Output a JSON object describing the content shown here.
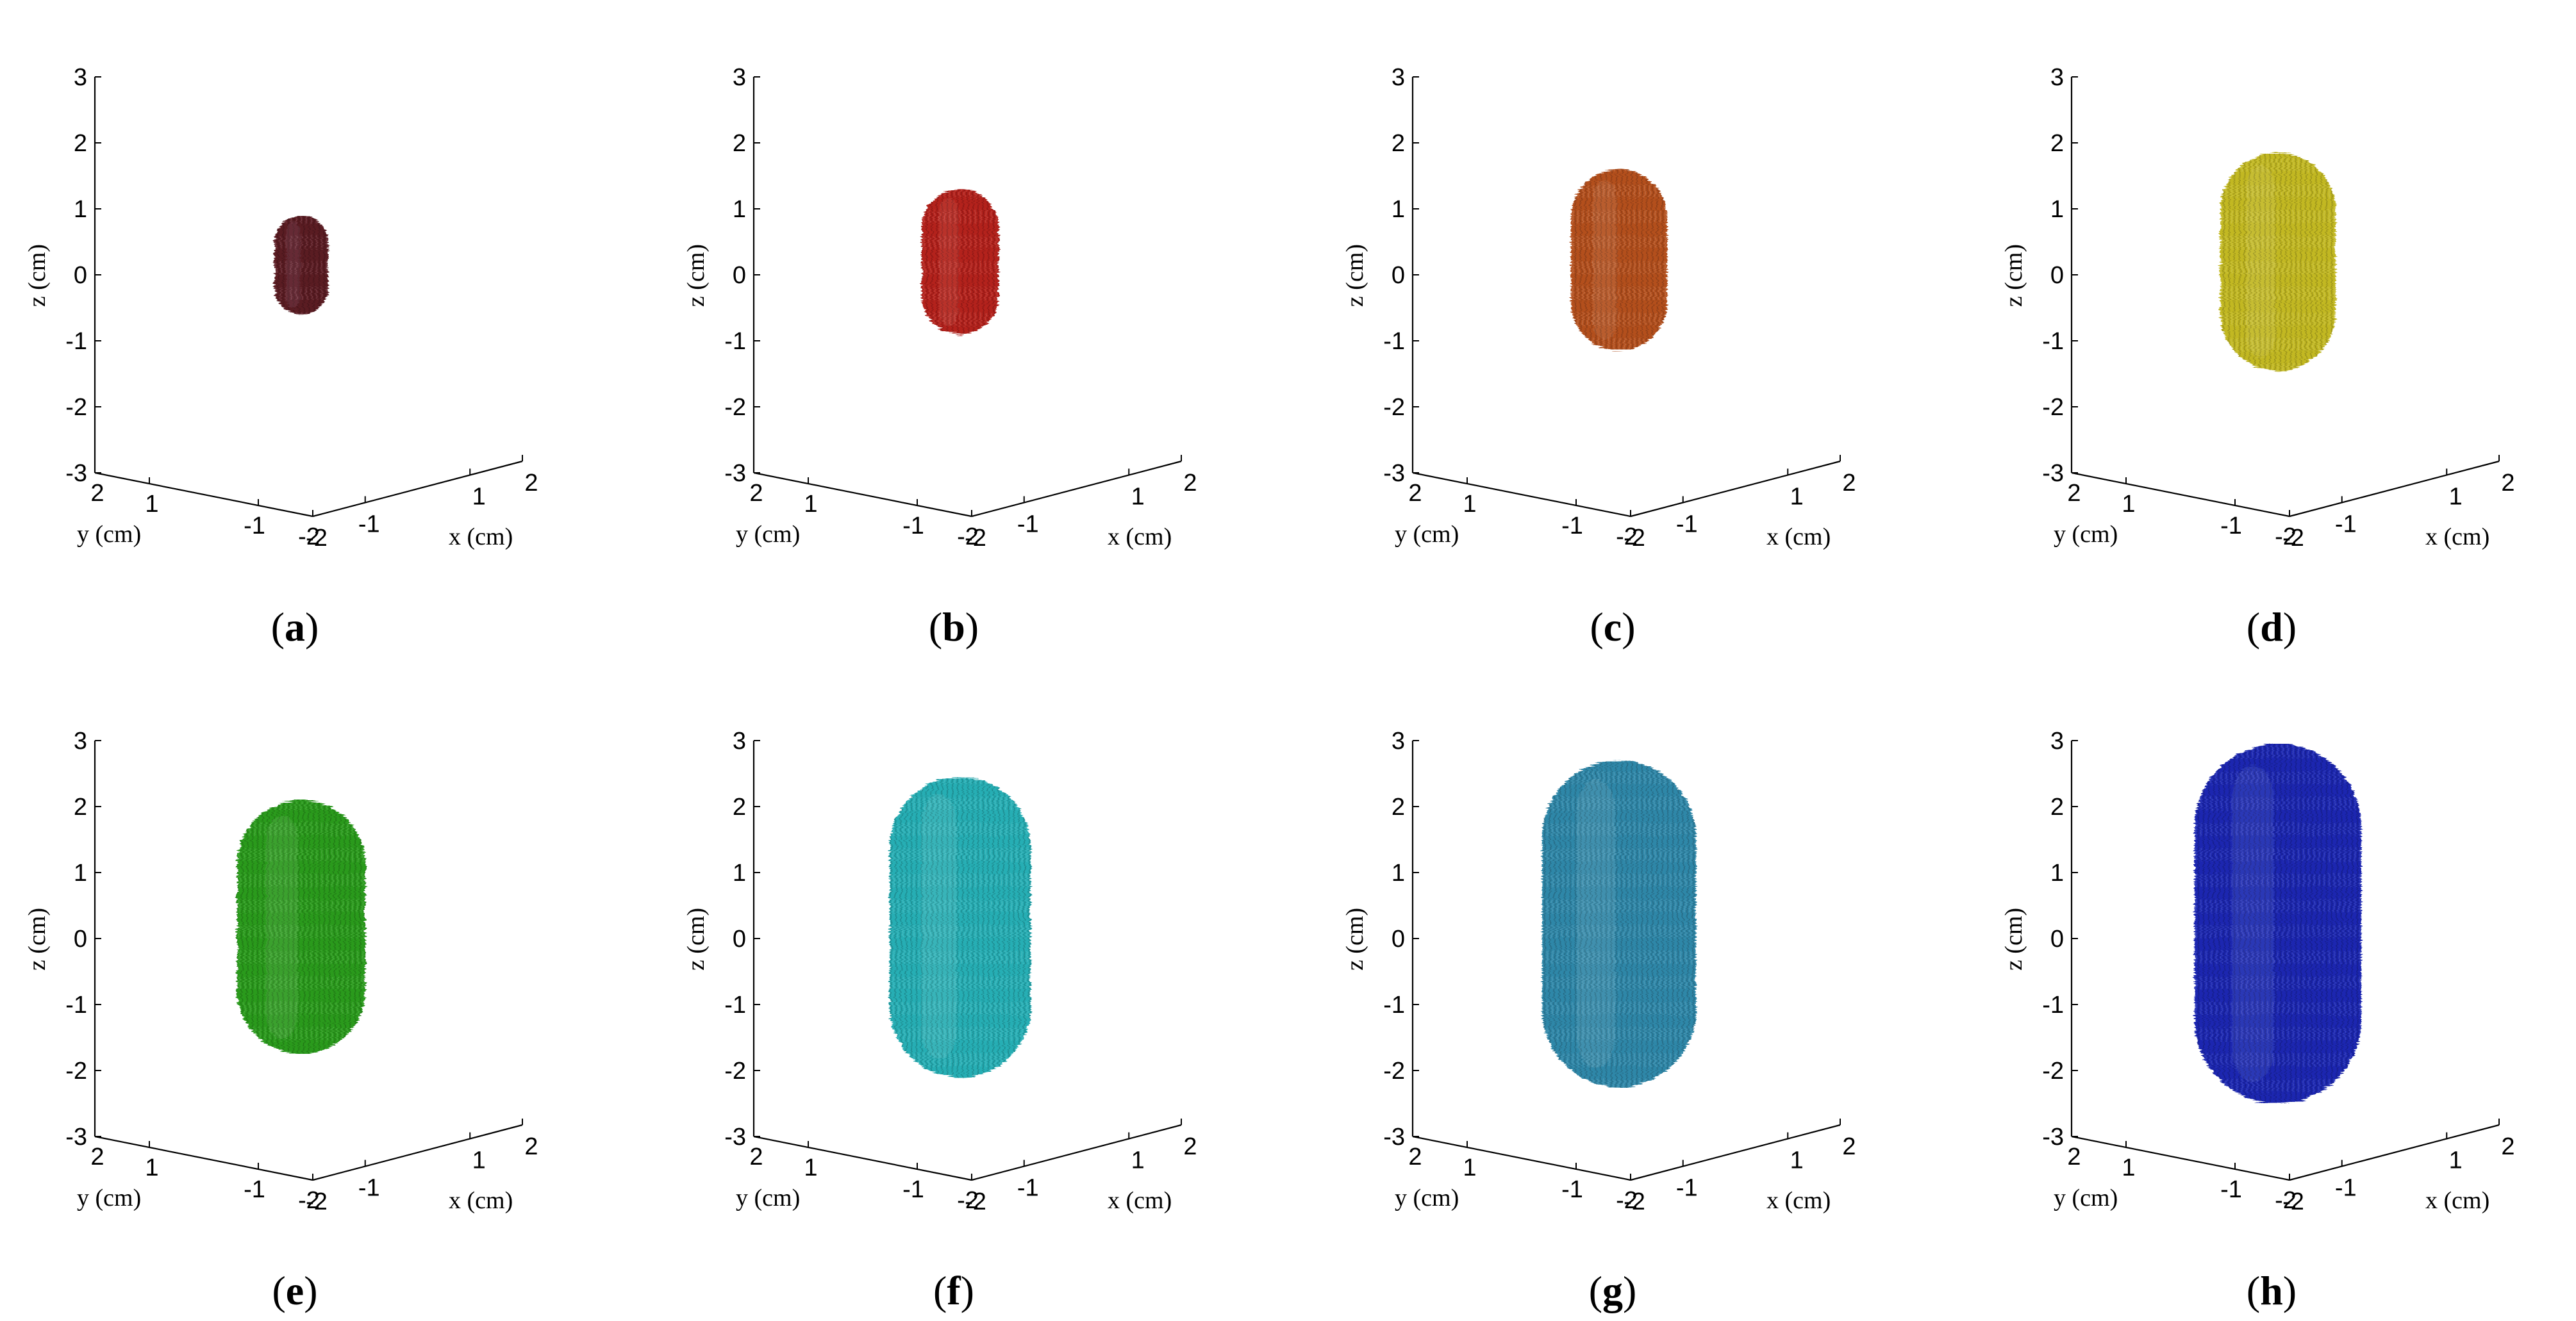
{
  "figure": {
    "layout": "2 rows x 4 columns",
    "background": "#ffffff"
  },
  "chart_data": [
    {
      "panel": "a",
      "label_open": "(",
      "label_letter": "a",
      "label_close": ")",
      "type": "3d-surface",
      "xlabel": "x (cm)",
      "ylabel": "y (cm)",
      "zlabel": "z (cm)",
      "xlim": [
        -2,
        2
      ],
      "ylim": [
        -2,
        2
      ],
      "zlim": [
        -3,
        3
      ],
      "x_ticks": [
        "-2",
        "-1",
        "1",
        "2"
      ],
      "y_ticks": [
        "2",
        "1",
        "-1",
        "-2"
      ],
      "z_ticks": [
        "3",
        "2",
        "1",
        "0",
        "-1",
        "-2",
        "-3"
      ],
      "shape": {
        "radius_xy": 0.42,
        "z_min": -0.6,
        "z_max": 0.9,
        "color": "#5a1a24"
      }
    },
    {
      "panel": "b",
      "label_open": "(",
      "label_letter": "b",
      "label_close": ")",
      "type": "3d-surface",
      "xlabel": "x (cm)",
      "ylabel": "y (cm)",
      "zlabel": "z (cm)",
      "xlim": [
        -2,
        2
      ],
      "ylim": [
        -2,
        2
      ],
      "zlim": [
        -3,
        3
      ],
      "x_ticks": [
        "-2",
        "-1",
        "1",
        "2"
      ],
      "y_ticks": [
        "2",
        "1",
        "-1",
        "-2"
      ],
      "z_ticks": [
        "3",
        "2",
        "1",
        "0",
        "-1",
        "-2",
        "-3"
      ],
      "shape": {
        "radius_xy": 0.6,
        "z_min": -0.9,
        "z_max": 1.3,
        "color": "#b3201a"
      }
    },
    {
      "panel": "c",
      "label_open": "(",
      "label_letter": "c",
      "label_close": ")",
      "type": "3d-surface",
      "xlabel": "x (cm)",
      "ylabel": "y (cm)",
      "zlabel": "z (cm)",
      "xlim": [
        -2,
        2
      ],
      "ylim": [
        -2,
        2
      ],
      "zlim": [
        -3,
        3
      ],
      "x_ticks": [
        "-2",
        "-1",
        "1",
        "2"
      ],
      "y_ticks": [
        "2",
        "1",
        "-1",
        "-2"
      ],
      "z_ticks": [
        "3",
        "2",
        "1",
        "0",
        "-1",
        "-2",
        "-3"
      ],
      "shape": {
        "radius_xy": 0.75,
        "z_min": -1.15,
        "z_max": 1.6,
        "color": "#b3501e"
      }
    },
    {
      "panel": "d",
      "label_open": "(",
      "label_letter": "d",
      "label_close": ")",
      "type": "3d-surface",
      "xlabel": "x (cm)",
      "ylabel": "y (cm)",
      "zlabel": "z (cm)",
      "xlim": [
        -2,
        2
      ],
      "ylim": [
        -2,
        2
      ],
      "zlim": [
        -3,
        3
      ],
      "x_ticks": [
        "-2",
        "-1",
        "1",
        "2"
      ],
      "y_ticks": [
        "2",
        "1",
        "-1",
        "-2"
      ],
      "z_ticks": [
        "3",
        "2",
        "1",
        "0",
        "-1",
        "-2",
        "-3"
      ],
      "shape": {
        "radius_xy": 0.9,
        "z_min": -1.45,
        "z_max": 1.85,
        "color": "#c2b822"
      }
    },
    {
      "panel": "e",
      "label_open": "(",
      "label_letter": "e",
      "label_close": ")",
      "type": "3d-surface",
      "xlabel": "x (cm)",
      "ylabel": "y (cm)",
      "zlabel": "z (cm)",
      "xlim": [
        -2,
        2
      ],
      "ylim": [
        -2,
        2
      ],
      "zlim": [
        -3,
        3
      ],
      "x_ticks": [
        "-2",
        "-1",
        "1",
        "2"
      ],
      "y_ticks": [
        "2",
        "1",
        "-1",
        "-2"
      ],
      "z_ticks": [
        "3",
        "2",
        "1",
        "0",
        "-1",
        "-2",
        "-3"
      ],
      "shape": {
        "radius_xy": 1.0,
        "z_min": -1.75,
        "z_max": 2.1,
        "color": "#2a9a1c"
      }
    },
    {
      "panel": "f",
      "label_open": "(",
      "label_letter": "f",
      "label_close": ")",
      "type": "3d-surface",
      "xlabel": "x (cm)",
      "ylabel": "y (cm)",
      "zlabel": "z (cm)",
      "xlim": [
        -2,
        2
      ],
      "ylim": [
        -2,
        2
      ],
      "zlim": [
        -3,
        3
      ],
      "x_ticks": [
        "-2",
        "-1",
        "1",
        "2"
      ],
      "y_ticks": [
        "2",
        "1",
        "-1",
        "-2"
      ],
      "z_ticks": [
        "3",
        "2",
        "1",
        "0",
        "-1",
        "-2",
        "-3"
      ],
      "shape": {
        "radius_xy": 1.1,
        "z_min": -2.1,
        "z_max": 2.45,
        "color": "#26aeb4"
      }
    },
    {
      "panel": "g",
      "label_open": "(",
      "label_letter": "g",
      "label_close": ")",
      "type": "3d-surface",
      "xlabel": "x (cm)",
      "ylabel": "y (cm)",
      "zlabel": "z (cm)",
      "xlim": [
        -2,
        2
      ],
      "ylim": [
        -2,
        2
      ],
      "zlim": [
        -3,
        3
      ],
      "x_ticks": [
        "-2",
        "-1",
        "1",
        "2"
      ],
      "y_ticks": [
        "2",
        "1",
        "-1",
        "-2"
      ],
      "z_ticks": [
        "3",
        "2",
        "1",
        "0",
        "-1",
        "-2",
        "-3"
      ],
      "shape": {
        "radius_xy": 1.2,
        "z_min": -2.25,
        "z_max": 2.7,
        "color": "#2f87a8"
      }
    },
    {
      "panel": "h",
      "label_open": "(",
      "label_letter": "h",
      "label_close": ")",
      "type": "3d-surface",
      "xlabel": "x (cm)",
      "ylabel": "y (cm)",
      "zlabel": "z (cm)",
      "xlim": [
        -2,
        2
      ],
      "ylim": [
        -2,
        2
      ],
      "zlim": [
        -3,
        3
      ],
      "x_ticks": [
        "-2",
        "-1",
        "1",
        "2"
      ],
      "y_ticks": [
        "2",
        "1",
        "-1",
        "-2"
      ],
      "z_ticks": [
        "3",
        "2",
        "1",
        "0",
        "-1",
        "-2",
        "-3"
      ],
      "shape": {
        "radius_xy": 1.3,
        "z_min": -2.5,
        "z_max": 2.95,
        "color": "#1a26b0"
      }
    }
  ]
}
